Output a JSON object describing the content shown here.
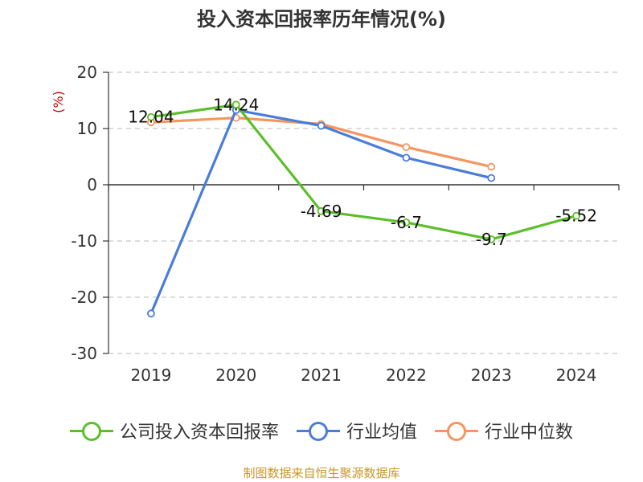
{
  "chart_data": {
    "type": "line",
    "title": "投入资本回报率历年情况(%)",
    "ylabel": "(%)",
    "categories": [
      "2019",
      "2020",
      "2021",
      "2022",
      "2023",
      "2024"
    ],
    "ylim": [
      -30,
      20
    ],
    "yticks": [
      20,
      10,
      0,
      -10,
      -20,
      -30
    ],
    "ytick_labels": [
      "20",
      "10",
      "0",
      "-10",
      "-20",
      "-30"
    ],
    "grid": true,
    "legend_position": "bottom",
    "series": [
      {
        "name": "公司投入资本回报率",
        "values": [
          12.04,
          14.24,
          -4.69,
          -6.7,
          -9.7,
          -5.52
        ],
        "labels": [
          "12.04",
          "14.24",
          "-4.69",
          "-6.7",
          "-9.7",
          "-5.52"
        ],
        "color": "#5cbf2a"
      },
      {
        "name": "行业均值",
        "values": [
          -22.9,
          13.3,
          10.5,
          4.8,
          1.2,
          null
        ],
        "color": "#4a7ddb"
      },
      {
        "name": "行业中位数",
        "values": [
          11.1,
          11.9,
          10.8,
          6.7,
          3.2,
          null
        ],
        "color": "#f59560"
      }
    ]
  },
  "source_note": "制图数据来自恒生聚源数据库"
}
